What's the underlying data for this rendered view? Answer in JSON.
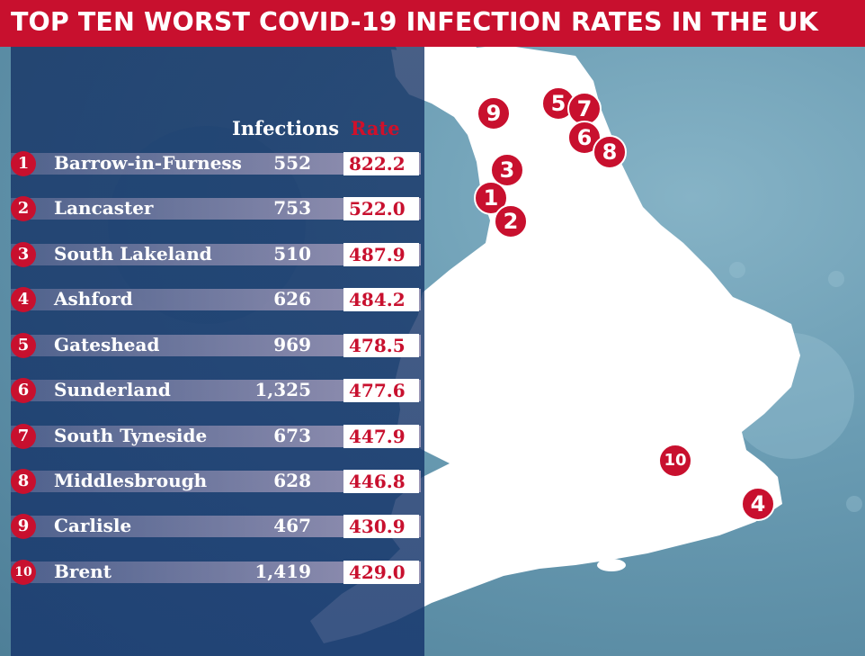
{
  "title": "TOP TEN WORST COVID-19 INFECTION RATES IN THE UK",
  "table": {
    "headers": {
      "infections": "Infections",
      "rate": "Rate"
    },
    "rows": [
      {
        "rank": "1",
        "name": "Barrow-in-Furness",
        "infections": "552",
        "rate": "822.2"
      },
      {
        "rank": "2",
        "name": "Lancaster",
        "infections": "753",
        "rate": "522.0"
      },
      {
        "rank": "3",
        "name": "South Lakeland",
        "infections": "510",
        "rate": "487.9"
      },
      {
        "rank": "4",
        "name": "Ashford",
        "infections": "626",
        "rate": "484.2"
      },
      {
        "rank": "5",
        "name": "Gateshead",
        "infections": "969",
        "rate": "478.5"
      },
      {
        "rank": "6",
        "name": "Sunderland",
        "infections": "1,325",
        "rate": "477.6"
      },
      {
        "rank": "7",
        "name": "South Tyneside",
        "infections": "673",
        "rate": "447.9"
      },
      {
        "rank": "8",
        "name": "Middlesbrough",
        "infections": "628",
        "rate": "446.8"
      },
      {
        "rank": "9",
        "name": "Carlisle",
        "infections": "467",
        "rate": "430.9"
      },
      {
        "rank": "10",
        "name": "Brent",
        "infections": "1,419",
        "rate": "429.0"
      }
    ]
  },
  "map": {
    "markers": [
      "9",
      "5",
      "7",
      "6",
      "8",
      "3",
      "1",
      "2",
      "10",
      "4"
    ]
  },
  "colors": {
    "accent": "#c8102e",
    "panel": "#17396e",
    "land": "#ffffff",
    "sea": "#6a9cb3"
  }
}
